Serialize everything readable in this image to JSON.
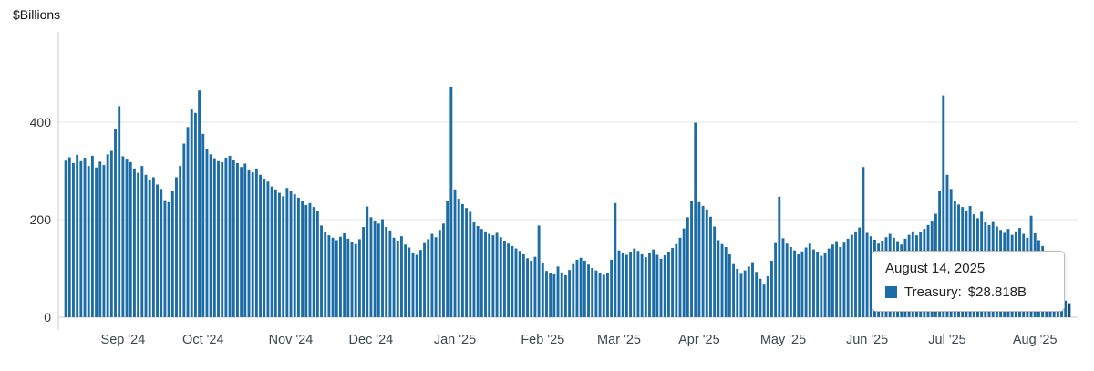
{
  "chart_data": {
    "type": "bar",
    "title": "",
    "ylabel": "$Billions",
    "xlabel": "",
    "ylim": [
      0,
      585
    ],
    "y_ticks": [
      400,
      200,
      0
    ],
    "x_ticks": [
      "Sep '24",
      "Oct '24",
      "Nov '24",
      "Dec '24",
      "Jan '25",
      "Feb '25",
      "Mar '25",
      "Apr '25",
      "May '25",
      "Jun '25",
      "Jul '25",
      "Aug '25"
    ],
    "grid": "horizontal",
    "legend_position": "none",
    "bar_color": "#1c6da6",
    "highlight_color": "#0e4d78",
    "start_date": "2024-08-12",
    "frequency": "business-daily",
    "series": [
      {
        "name": "Treasury",
        "values": [
          321,
          328,
          316,
          333,
          320,
          327,
          310,
          331,
          307,
          319,
          312,
          334,
          341,
          386,
          433,
          330,
          325,
          318,
          305,
          296,
          310,
          292,
          281,
          287,
          272,
          263,
          240,
          236,
          258,
          287,
          310,
          356,
          390,
          426,
          419,
          465,
          376,
          345,
          334,
          326,
          320,
          318,
          327,
          331,
          322,
          316,
          308,
          315,
          303,
          297,
          305,
          292,
          284,
          278,
          268,
          262,
          255,
          248,
          265,
          258,
          252,
          245,
          238,
          230,
          234,
          226,
          218,
          188,
          175,
          168,
          163,
          158,
          165,
          172,
          161,
          155,
          150,
          160,
          185,
          227,
          205,
          198,
          192,
          201,
          185,
          178,
          163,
          157,
          166,
          149,
          143,
          131,
          128,
          138,
          152,
          160,
          171,
          164,
          179,
          192,
          238,
          473,
          262,
          243,
          232,
          224,
          216,
          196,
          187,
          181,
          176,
          171,
          168,
          173,
          164,
          157,
          151,
          146,
          141,
          136,
          129,
          121,
          116,
          124,
          188,
          112,
          95,
          90,
          88,
          104,
          92,
          86,
          97,
          109,
          118,
          122,
          116,
          108,
          101,
          96,
          91,
          87,
          90,
          118,
          234,
          137,
          131,
          128,
          133,
          141,
          136,
          129,
          123,
          131,
          139,
          128,
          120,
          127,
          134,
          142,
          150,
          163,
          182,
          205,
          239,
          399,
          236,
          228,
          221,
          206,
          186,
          158,
          150,
          144,
          129,
          109,
          99,
          89,
          96,
          104,
          113,
          93,
          79,
          67,
          84,
          116,
          152,
          247,
          162,
          151,
          144,
          137,
          129,
          135,
          143,
          151,
          139,
          133,
          126,
          131,
          141,
          149,
          156,
          144,
          153,
          161,
          169,
          176,
          184,
          308,
          173,
          166,
          159,
          151,
          157,
          164,
          171,
          163,
          156,
          149,
          161,
          169,
          176,
          168,
          174,
          181,
          189,
          198,
          212,
          258,
          455,
          292,
          263,
          239,
          231,
          226,
          219,
          228,
          211,
          203,
          216,
          196,
          189,
          197,
          186,
          179,
          173,
          181,
          169,
          176,
          183,
          171,
          163,
          208,
          172,
          158,
          146,
          135,
          121,
          98,
          76,
          52,
          34,
          28.818
        ]
      }
    ]
  },
  "tooltip": {
    "date": "August 14, 2025",
    "series_label": "Treasury:",
    "value": "$28.818B"
  }
}
